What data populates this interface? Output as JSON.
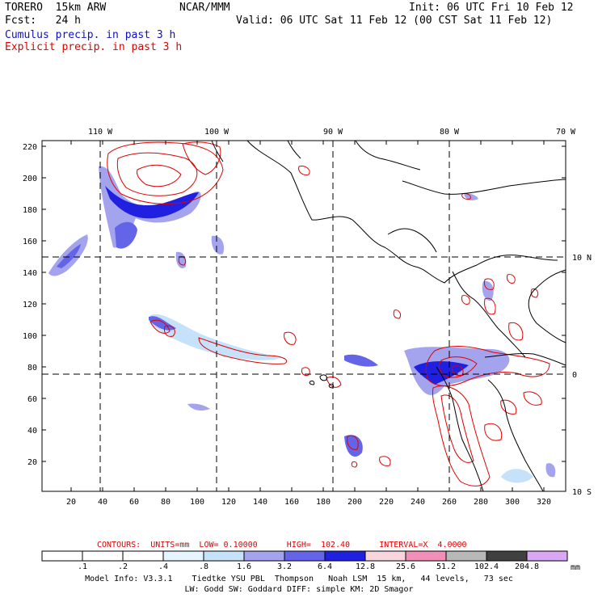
{
  "header": {
    "model": "TORERO  15km ARW",
    "org": "NCAR/MMM",
    "init": "Init: 06 UTC Fri 10 Feb 12",
    "fcst": "Fcst:   24 h",
    "valid": "Valid: 06 UTC Sat 11 Feb 12 (00 CST Sat 11 Feb 12)",
    "line_cumulus": "Cumulus precip. in past 3 h",
    "line_explicit": "Explicit precip. in past 3 h",
    "cumulus_color": "#1010c0",
    "explicit_color": "#e00000"
  },
  "map": {
    "top_lon_labels": [
      "110 W",
      "100 W",
      "90 W",
      "80 W",
      "70 W"
    ],
    "right_lat_labels": [
      "10 N",
      "0",
      "10 S"
    ],
    "y_ticks": [
      "220",
      "200",
      "180",
      "160",
      "140",
      "120",
      "100",
      "80",
      "60",
      "40",
      "20"
    ],
    "x_ticks": [
      "20",
      "40",
      "60",
      "80",
      "100",
      "120",
      "140",
      "160",
      "180",
      "200",
      "220",
      "240",
      "260",
      "280",
      "300",
      "320"
    ]
  },
  "contours": {
    "text": "CONTOURS:  UNITS=mm  LOW= 0.10000      HIGH=  102.40      INTERVAL=X  4.0000"
  },
  "colorbar": {
    "unit": "mm",
    "boundaries": [
      ".1",
      ".2",
      ".4",
      ".8",
      "1.6",
      "3.2",
      "6.4",
      "12.8",
      "25.6",
      "51.2",
      "102.4",
      "204.8"
    ],
    "colors": [
      "#ffffff",
      "#ffffff",
      "#ffffff",
      "#e6f4ff",
      "#c6e2fa",
      "#a4a4ee",
      "#6464e8",
      "#2020e0",
      "#f8d4dc",
      "#f090b8",
      "#b8b8b8",
      "#404040",
      "#d8a8f4"
    ]
  },
  "footer": {
    "line1": "Model Info: V3.3.1    Tiedtke YSU PBL  Thompson   Noah LSM  15 km,   44 levels,   73 sec",
    "line2": "LW: Godd SW: Goddard DIFF: simple KM: 2D Smagor"
  }
}
